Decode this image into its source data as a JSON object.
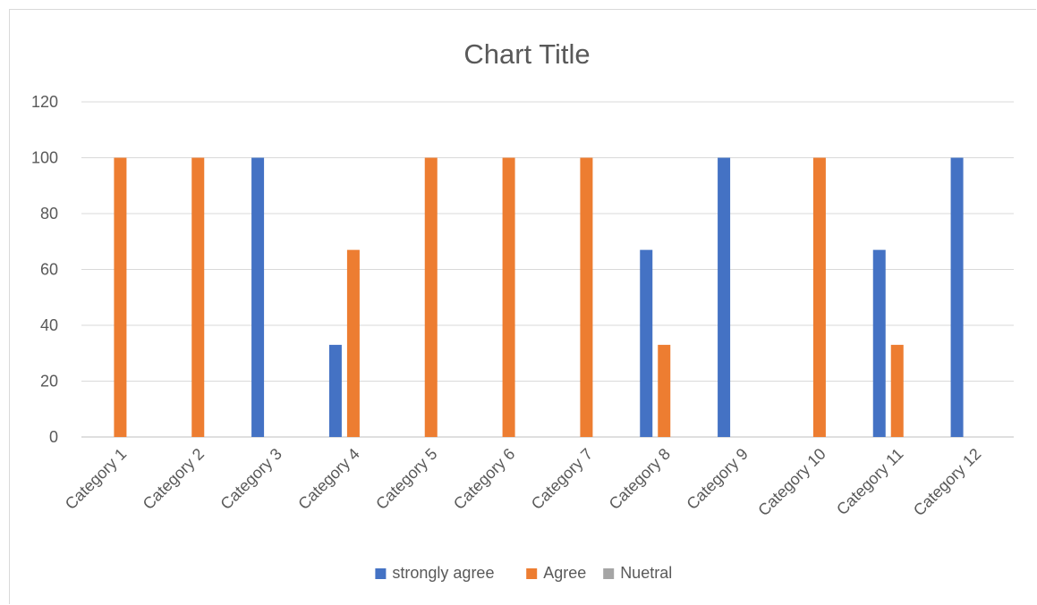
{
  "chart_data": {
    "type": "bar",
    "title": "Chart Title",
    "xlabel": "",
    "ylabel": "",
    "ylim": [
      0,
      120
    ],
    "yticks": [
      0,
      20,
      40,
      60,
      80,
      100,
      120
    ],
    "grid": true,
    "legend_position": "bottom",
    "categories": [
      "Category 1",
      "Category 2",
      "Category 3",
      "Category 4",
      "Category 5",
      "Category 6",
      "Category 7",
      "Category 8",
      "Category 9",
      "Category 10",
      "Category 11",
      "Category 12"
    ],
    "series": [
      {
        "name": "strongly agree",
        "color": "#4472c4",
        "values": [
          0,
          0,
          100,
          33,
          0,
          0,
          0,
          67,
          100,
          0,
          67,
          100
        ]
      },
      {
        "name": "Agree",
        "color": "#ed7d31",
        "values": [
          100,
          100,
          0,
          67,
          100,
          100,
          100,
          33,
          0,
          100,
          33,
          0
        ]
      },
      {
        "name": "Nuetral",
        "color": "#a5a5a5",
        "values": [
          0,
          0,
          0,
          0,
          0,
          0,
          0,
          0,
          0,
          0,
          0,
          0
        ]
      }
    ]
  }
}
